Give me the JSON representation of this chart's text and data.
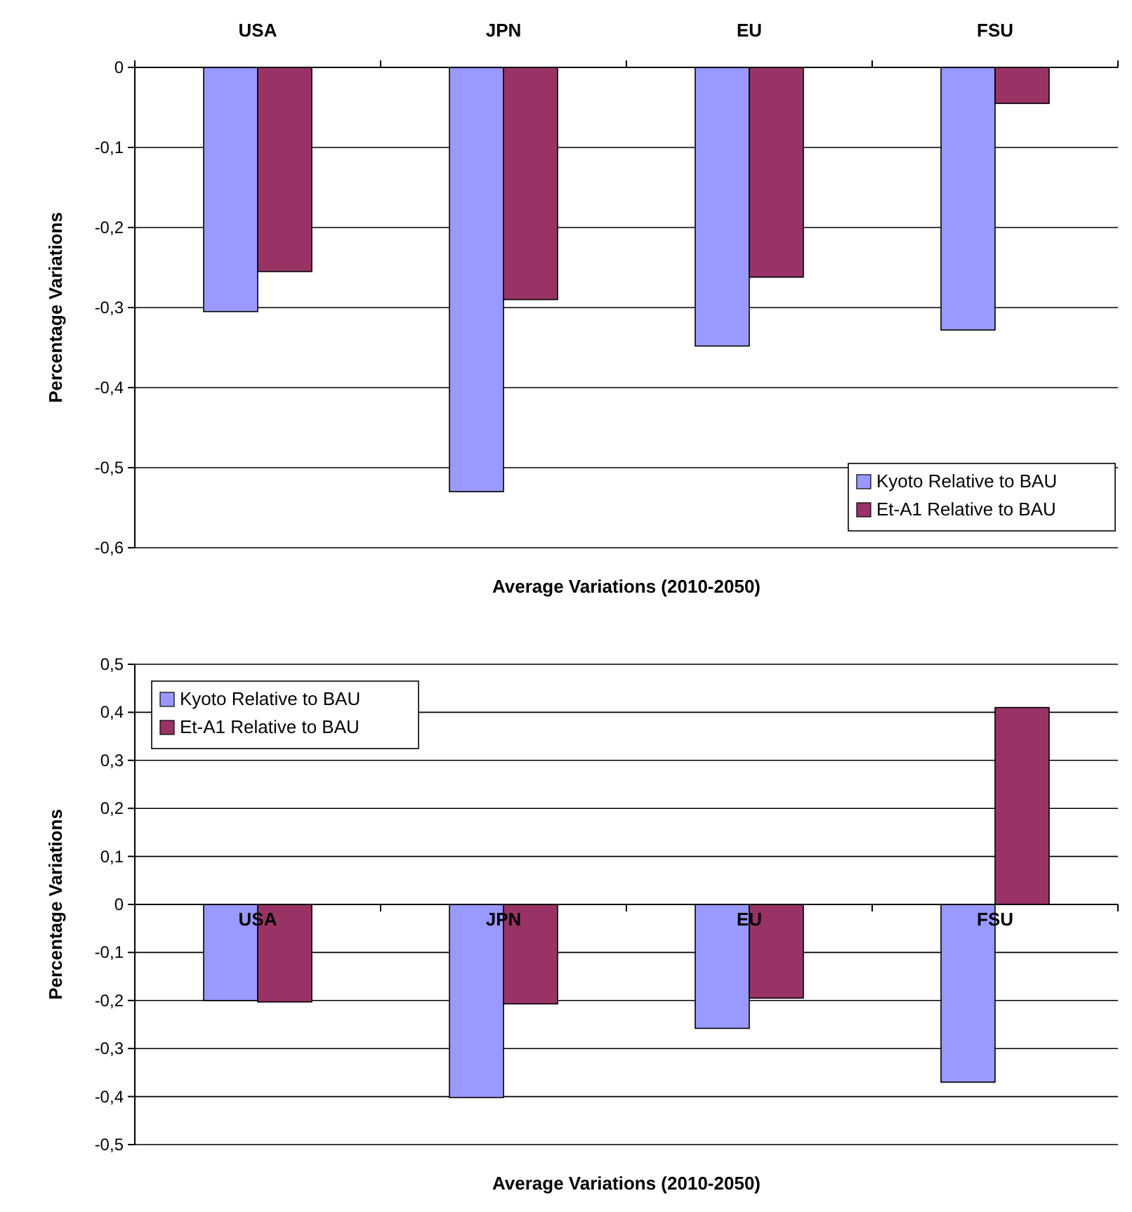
{
  "chart_data": [
    {
      "type": "bar",
      "xlabel": "Average Variations (2010-2050)",
      "ylabel": "Percentage Variations",
      "categories": [
        "USA",
        "JPN",
        "EU",
        "FSU"
      ],
      "series": [
        {
          "name": "Kyoto Relative to BAU",
          "color": "#9999ff",
          "values": [
            -0.305,
            -0.53,
            -0.348,
            -0.328
          ]
        },
        {
          "name": "Et-A1 Relative to BAU",
          "color": "#993366",
          "values": [
            -0.255,
            -0.29,
            -0.262,
            -0.045
          ]
        }
      ],
      "ylim": [
        -0.6,
        0
      ],
      "yticks": [
        {
          "value": -0.6,
          "label": "-0,6"
        },
        {
          "value": -0.5,
          "label": "-0,5"
        },
        {
          "value": -0.4,
          "label": "-0,4"
        },
        {
          "value": -0.3,
          "label": "-0,3"
        },
        {
          "value": -0.2,
          "label": "-0,2"
        },
        {
          "value": -0.1,
          "label": "-0,1"
        },
        0
      ],
      "grid": "y",
      "legend": "bottom right"
    },
    {
      "type": "bar",
      "xlabel": "Average Variations (2010-2050)",
      "ylabel": "Percentage Variations",
      "categories": [
        "USA",
        "JPN",
        "EU",
        "FSU"
      ],
      "series": [
        {
          "name": "Kyoto Relative to BAU",
          "color": "#9999ff",
          "values": [
            -0.2,
            -0.402,
            -0.258,
            -0.37
          ]
        },
        {
          "name": "Et-A1 Relative to BAU",
          "color": "#993366",
          "values": [
            -0.203,
            -0.207,
            -0.195,
            0.41
          ]
        }
      ],
      "ylim": [
        -0.5,
        0.5
      ],
      "yticks": [
        {
          "value": -0.5,
          "label": "-0,5"
        },
        {
          "value": -0.4,
          "label": "-0,4"
        },
        {
          "value": -0.3,
          "label": "-0,3"
        },
        {
          "value": -0.2,
          "label": "-0,2"
        },
        {
          "value": -0.1,
          "label": "-0,1"
        },
        0,
        {
          "value": 0.1,
          "label": "0,1"
        },
        {
          "value": 0.2,
          "label": "0,2"
        },
        {
          "value": 0.3,
          "label": "0,3"
        },
        {
          "value": 0.4,
          "label": "0,4"
        },
        {
          "value": 0.5,
          "label": "0,5"
        }
      ],
      "grid": "y",
      "legend": "top left"
    }
  ]
}
